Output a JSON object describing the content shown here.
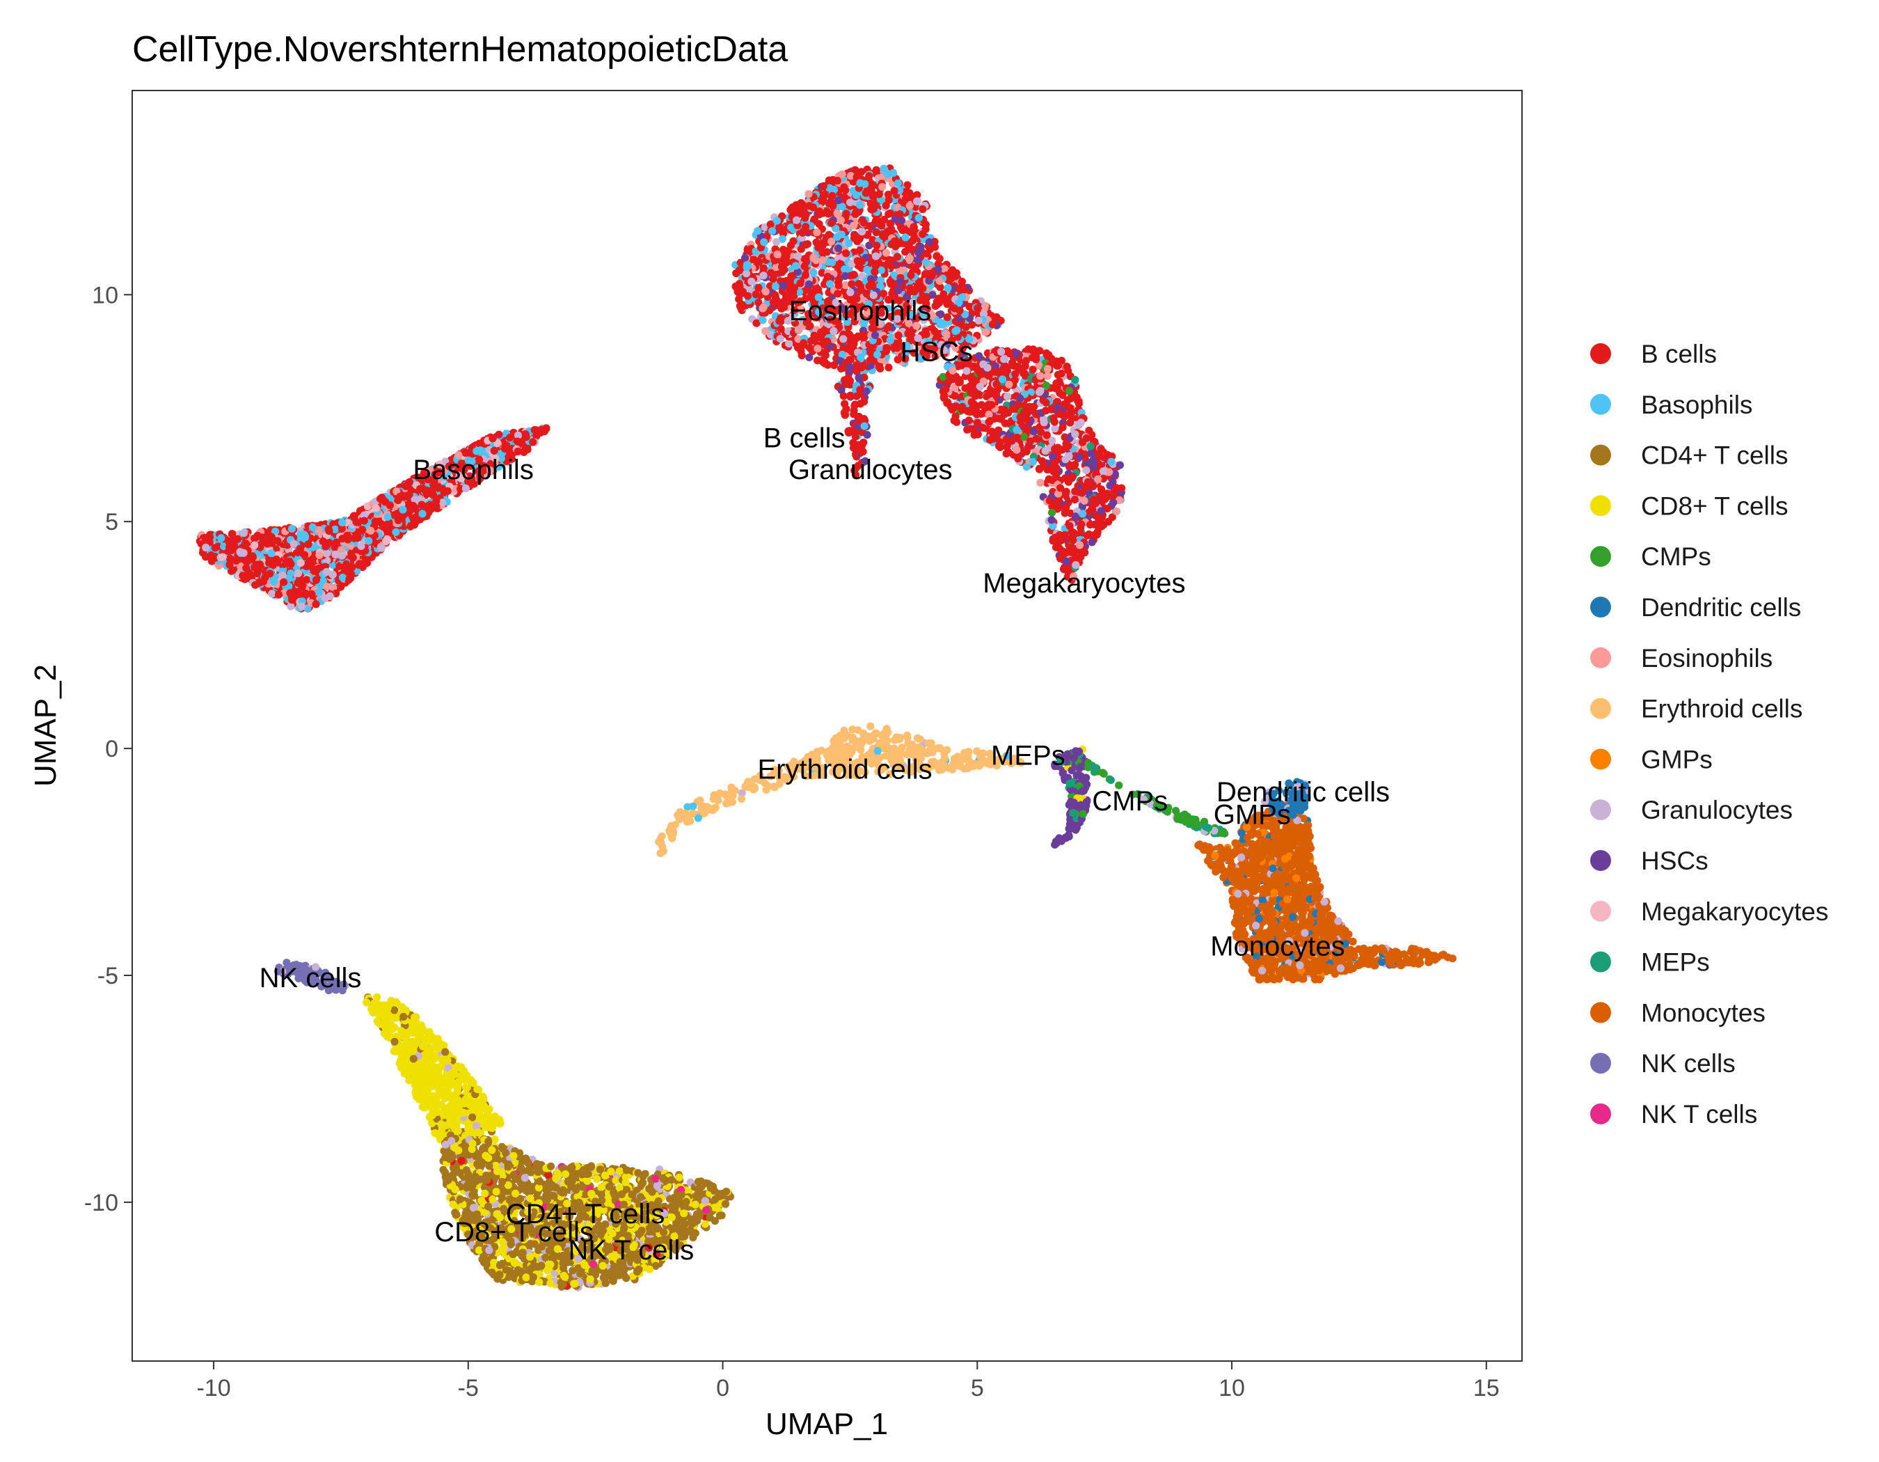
{
  "chart_data": {
    "type": "scatter",
    "title": "CellType.NovershternHematopoieticData",
    "xlabel": "UMAP_1",
    "ylabel": "UMAP_2",
    "xlim": [
      -11.6,
      15.7
    ],
    "ylim": [
      -13.5,
      14.5
    ],
    "x_ticks": [
      -10,
      -5,
      0,
      5,
      10,
      15
    ],
    "y_ticks": [
      -10,
      -5,
      0,
      5,
      10
    ],
    "grid": false,
    "legend_position": "right",
    "legend": [
      {
        "name": "B cells",
        "color": "#E31A1C"
      },
      {
        "name": "Basophils",
        "color": "#4FC3F7"
      },
      {
        "name": "CD4+ T cells",
        "color": "#A6761D"
      },
      {
        "name": "CD8+ T cells",
        "color": "#F0E000"
      },
      {
        "name": "CMPs",
        "color": "#33A02C"
      },
      {
        "name": "Dendritic cells",
        "color": "#1F78B4"
      },
      {
        "name": "Eosinophils",
        "color": "#FB9A99"
      },
      {
        "name": "Erythroid cells",
        "color": "#FDBF6F"
      },
      {
        "name": "GMPs",
        "color": "#FF7F00"
      },
      {
        "name": "Granulocytes",
        "color": "#CAB2D6"
      },
      {
        "name": "HSCs",
        "color": "#6A3D9A"
      },
      {
        "name": "Megakaryocytes",
        "color": "#F4B6C2"
      },
      {
        "name": "MEPs",
        "color": "#1B9E77"
      },
      {
        "name": "Monocytes",
        "color": "#D95F02"
      },
      {
        "name": "NK cells",
        "color": "#7570B3"
      },
      {
        "name": "NK T cells",
        "color": "#E7298A"
      }
    ],
    "clusters": [
      {
        "composition": [
          [
            "B cells",
            0.6
          ],
          [
            "Basophils",
            0.2
          ],
          [
            "Eosinophils",
            0.08
          ],
          [
            "Granulocytes",
            0.07
          ],
          [
            "Megakaryocytes",
            0.05
          ]
        ],
        "path": [
          [
            -10.3,
            4.7
          ],
          [
            -9.0,
            4.8
          ],
          [
            -7.5,
            5.0
          ],
          [
            -6.0,
            6.0
          ],
          [
            -4.5,
            6.9
          ],
          [
            -3.4,
            7.1
          ],
          [
            -3.8,
            6.6
          ],
          [
            -5.2,
            5.6
          ],
          [
            -6.6,
            4.5
          ],
          [
            -7.6,
            3.4
          ],
          [
            -8.3,
            3.0
          ],
          [
            -9.2,
            3.6
          ],
          [
            -10.2,
            4.2
          ]
        ],
        "n": 2000
      },
      {
        "composition": [
          [
            "B cells",
            0.6
          ],
          [
            "Basophils",
            0.17
          ],
          [
            "Eosinophils",
            0.1
          ],
          [
            "Granulocytes",
            0.08
          ],
          [
            "HSCs",
            0.05
          ]
        ],
        "path": [
          [
            0.2,
            10.7
          ],
          [
            0.8,
            11.6
          ],
          [
            1.6,
            12.2
          ],
          [
            2.5,
            12.8
          ],
          [
            3.3,
            12.8
          ],
          [
            4.0,
            12.0
          ],
          [
            4.2,
            11.0
          ],
          [
            4.8,
            10.2
          ],
          [
            5.5,
            9.4
          ],
          [
            4.8,
            8.8
          ],
          [
            3.6,
            8.5
          ],
          [
            2.8,
            8.2
          ],
          [
            1.8,
            8.5
          ],
          [
            1.0,
            9.0
          ],
          [
            0.3,
            9.7
          ]
        ],
        "n": 1900
      },
      {
        "composition": [
          [
            "B cells",
            0.62
          ],
          [
            "HSCs",
            0.12
          ],
          [
            "Granulocytes",
            0.1
          ],
          [
            "Eosinophils",
            0.08
          ],
          [
            "Basophils",
            0.04
          ],
          [
            "MEPs",
            0.02
          ],
          [
            "CMPs",
            0.02
          ]
        ],
        "path": [
          [
            4.5,
            8.6
          ],
          [
            5.5,
            8.8
          ],
          [
            6.3,
            8.8
          ],
          [
            6.9,
            8.4
          ],
          [
            7.0,
            7.6
          ],
          [
            7.3,
            6.8
          ],
          [
            7.8,
            6.3
          ],
          [
            7.9,
            5.4
          ],
          [
            7.3,
            4.6
          ],
          [
            6.8,
            3.6
          ],
          [
            6.5,
            4.5
          ],
          [
            6.2,
            6.0
          ],
          [
            5.4,
            6.6
          ],
          [
            4.5,
            7.2
          ],
          [
            4.2,
            8.0
          ]
        ],
        "n": 1050
      },
      {
        "composition": [
          [
            "B cells",
            0.75
          ],
          [
            "Basophils",
            0.1
          ],
          [
            "HSCs",
            0.15
          ]
        ],
        "path": [
          [
            2.5,
            8.6
          ],
          [
            2.9,
            8.1
          ],
          [
            2.8,
            6.2
          ],
          [
            2.6,
            6.0
          ],
          [
            2.4,
            7.2
          ],
          [
            2.2,
            8.2
          ]
        ],
        "n": 90
      },
      {
        "composition": [
          [
            "Erythroid cells",
            0.97
          ],
          [
            "Basophils",
            0.02
          ],
          [
            "Granulocytes",
            0.01
          ]
        ],
        "path": [
          [
            -1.3,
            -2.1
          ],
          [
            -0.8,
            -1.3
          ],
          [
            0.5,
            -0.7
          ],
          [
            1.8,
            -0.1
          ],
          [
            2.6,
            0.6
          ],
          [
            3.4,
            0.4
          ],
          [
            4.4,
            0.0
          ],
          [
            5.5,
            -0.1
          ],
          [
            6.0,
            -0.3
          ],
          [
            5.3,
            -0.4
          ],
          [
            4.2,
            -0.5
          ],
          [
            3.0,
            -0.6
          ],
          [
            1.8,
            -0.6
          ],
          [
            0.6,
            -1.0
          ],
          [
            -0.8,
            -1.7
          ],
          [
            -1.3,
            -2.5
          ]
        ],
        "n": 420
      },
      {
        "composition": [
          [
            "HSCs",
            0.8
          ],
          [
            "MEPs",
            0.12
          ],
          [
            "CMPs",
            0.05
          ],
          [
            "CD8+ T cells",
            0.03
          ]
        ],
        "path": [
          [
            6.5,
            -0.2
          ],
          [
            7.1,
            0.0
          ],
          [
            7.2,
            -0.8
          ],
          [
            7.1,
            -1.6
          ],
          [
            6.7,
            -2.1
          ],
          [
            6.4,
            -2.2
          ],
          [
            6.8,
            -1.7
          ],
          [
            6.8,
            -0.9
          ],
          [
            6.5,
            -0.4
          ]
        ],
        "n": 130
      },
      {
        "composition": [
          [
            "CMPs",
            0.75
          ],
          [
            "MEPs",
            0.15
          ],
          [
            "Granulocytes",
            0.1
          ]
        ],
        "path": [
          [
            7.1,
            -0.4
          ],
          [
            8.0,
            -1.0
          ],
          [
            9.0,
            -1.6
          ],
          [
            9.8,
            -2.0
          ],
          [
            9.9,
            -1.8
          ],
          [
            8.8,
            -1.3
          ],
          [
            7.8,
            -0.8
          ],
          [
            7.2,
            -0.3
          ]
        ],
        "n": 75
      },
      {
        "composition": [
          [
            "Monocytes",
            0.86
          ],
          [
            "GMPs",
            0.05
          ],
          [
            "Dendritic cells",
            0.05
          ],
          [
            "Granulocytes",
            0.04
          ]
        ],
        "path": [
          [
            9.3,
            -2.1
          ],
          [
            9.9,
            -2.2
          ],
          [
            10.4,
            -1.5
          ],
          [
            11.2,
            -1.2
          ],
          [
            11.5,
            -1.6
          ],
          [
            11.6,
            -2.6
          ],
          [
            11.9,
            -3.5
          ],
          [
            12.5,
            -4.4
          ],
          [
            13.5,
            -4.4
          ],
          [
            14.5,
            -4.6
          ],
          [
            13.6,
            -4.8
          ],
          [
            12.5,
            -4.8
          ],
          [
            11.8,
            -5.1
          ],
          [
            10.5,
            -5.1
          ],
          [
            10.1,
            -4.3
          ],
          [
            10.0,
            -3.2
          ],
          [
            9.7,
            -2.8
          ]
        ],
        "n": 1450
      },
      {
        "composition": [
          [
            "Dendritic cells",
            0.85
          ],
          [
            "Granulocytes",
            0.15
          ]
        ],
        "path": [
          [
            10.6,
            -1.0
          ],
          [
            11.2,
            -0.7
          ],
          [
            11.5,
            -0.6
          ],
          [
            11.5,
            -1.3
          ],
          [
            11.2,
            -1.5
          ],
          [
            10.7,
            -1.4
          ]
        ],
        "n": 75
      },
      {
        "composition": [
          [
            "NK cells",
            0.88
          ],
          [
            "Granulocytes",
            0.12
          ]
        ],
        "path": [
          [
            -8.7,
            -4.7
          ],
          [
            -8.0,
            -4.8
          ],
          [
            -7.3,
            -5.3
          ],
          [
            -7.6,
            -5.4
          ],
          [
            -8.3,
            -5.1
          ],
          [
            -8.8,
            -4.9
          ]
        ],
        "n": 80
      },
      {
        "composition": [
          [
            "CD8+ T cells",
            0.88
          ],
          [
            "CD4+ T cells",
            0.09
          ],
          [
            "Granulocytes",
            0.03
          ]
        ],
        "path": [
          [
            -7.1,
            -5.4
          ],
          [
            -6.3,
            -5.6
          ],
          [
            -5.5,
            -6.5
          ],
          [
            -4.8,
            -7.5
          ],
          [
            -4.3,
            -8.3
          ],
          [
            -5.0,
            -8.8
          ],
          [
            -5.6,
            -8.6
          ],
          [
            -6.1,
            -7.5
          ],
          [
            -6.8,
            -6.0
          ]
        ],
        "n": 650
      },
      {
        "composition": [
          [
            "CD4+ T cells",
            0.66
          ],
          [
            "CD8+ T cells",
            0.26
          ],
          [
            "Granulocytes",
            0.06
          ],
          [
            "B cells",
            0.01
          ],
          [
            "NK T cells",
            0.01
          ]
        ],
        "path": [
          [
            -5.5,
            -8.5
          ],
          [
            -4.5,
            -8.6
          ],
          [
            -3.5,
            -9.2
          ],
          [
            -2.0,
            -9.2
          ],
          [
            -0.9,
            -9.3
          ],
          [
            0.2,
            -9.8
          ],
          [
            0.0,
            -10.3
          ],
          [
            -0.8,
            -11.0
          ],
          [
            -1.6,
            -11.7
          ],
          [
            -3.0,
            -11.9
          ],
          [
            -4.5,
            -11.7
          ],
          [
            -5.2,
            -10.5
          ],
          [
            -5.5,
            -9.5
          ]
        ],
        "n": 2000
      }
    ],
    "annotations": [
      {
        "text": "Basophils",
        "x": -4.9,
        "y": 6.1
      },
      {
        "text": "Eosinophils",
        "x": 2.7,
        "y": 9.6
      },
      {
        "text": "HSCs",
        "x": 4.2,
        "y": 8.7
      },
      {
        "text": "B cells",
        "x": 1.6,
        "y": 6.8
      },
      {
        "text": "Granulocytes",
        "x": 2.9,
        "y": 6.1
      },
      {
        "text": "Megakaryocytes",
        "x": 7.1,
        "y": 3.6
      },
      {
        "text": "Erythroid cells",
        "x": 2.4,
        "y": -0.5
      },
      {
        "text": "MEPs",
        "x": 6.0,
        "y": -0.2
      },
      {
        "text": "CMPs",
        "x": 8.0,
        "y": -1.2
      },
      {
        "text": "Dendritic cells",
        "x": 11.4,
        "y": -1.0
      },
      {
        "text": "GMPs",
        "x": 10.4,
        "y": -1.5
      },
      {
        "text": "Monocytes",
        "x": 10.9,
        "y": -4.4
      },
      {
        "text": "NK cells",
        "x": -8.1,
        "y": -5.1
      },
      {
        "text": "CD4+ T cells",
        "x": -2.7,
        "y": -10.3
      },
      {
        "text": "CD8+ T cells",
        "x": -4.1,
        "y": -10.7
      },
      {
        "text": "NK T cells",
        "x": -1.8,
        "y": -11.1
      }
    ]
  }
}
